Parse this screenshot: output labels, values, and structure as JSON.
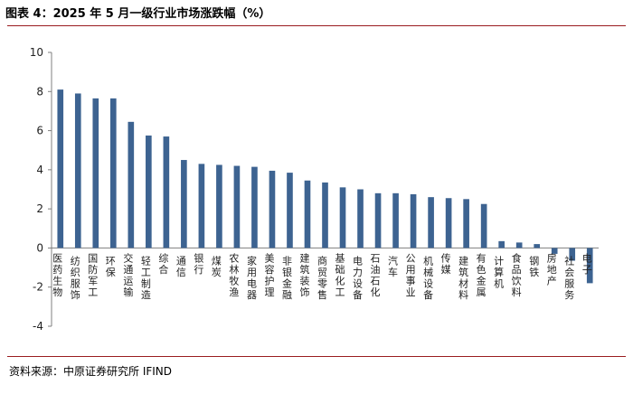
{
  "header": {
    "title": "图表 4：2025 年 5 月一级行业市场涨跌幅（%）"
  },
  "footer": {
    "source": "资料来源：中原证券研究所   IFIND"
  },
  "colors": {
    "bar": "#3d6391",
    "accent_rule": "#9a1c1f",
    "axis": "#7f7f7f"
  },
  "chart_data": {
    "type": "bar",
    "title": "",
    "xlabel": "",
    "ylabel": "",
    "ylim": [
      -4,
      10
    ],
    "yticks": [
      -4,
      -2,
      0,
      2,
      4,
      6,
      8,
      10
    ],
    "grid": false,
    "categories": [
      "医药生物",
      "纺织服饰",
      "国防军工",
      "环保",
      "交通运输",
      "轻工制造",
      "综合",
      "通信",
      "银行",
      "煤炭",
      "农林牧渔",
      "家用电器",
      "美容护理",
      "非银金融",
      "建筑装饰",
      "商贸零售",
      "基础化工",
      "电力设备",
      "石油石化",
      "汽车",
      "公用事业",
      "机械设备",
      "传媒",
      "建筑材料",
      "有色金属",
      "计算机",
      "食品饮料",
      "钢铁",
      "房地产",
      "社会服务",
      "电子"
    ],
    "values": [
      8.1,
      7.9,
      7.65,
      7.65,
      6.45,
      5.75,
      5.7,
      4.5,
      4.3,
      4.25,
      4.2,
      4.15,
      3.95,
      3.85,
      3.45,
      3.35,
      3.1,
      3.0,
      2.8,
      2.8,
      2.75,
      2.6,
      2.55,
      2.5,
      2.25,
      0.35,
      0.28,
      0.2,
      -0.3,
      -0.65,
      -1.8
    ]
  }
}
